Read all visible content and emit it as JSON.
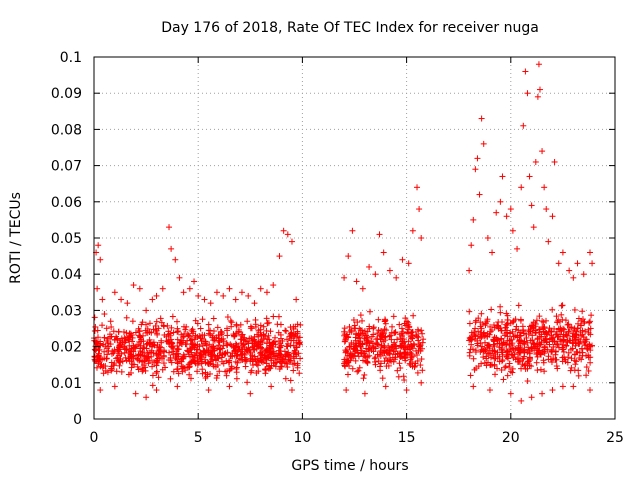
{
  "chart_data": {
    "type": "scatter",
    "title": "Day 176 of 2018, Rate Of TEC Index for receiver nuga",
    "xlabel": "GPS time / hours",
    "ylabel": "ROTI / TECUs",
    "xlim": [
      0,
      25
    ],
    "ylim": [
      0,
      0.1
    ],
    "x_ticks": [
      0,
      5,
      10,
      15,
      20,
      25
    ],
    "x_tick_labels": [
      "0",
      "5",
      "10",
      "15",
      "20",
      "25"
    ],
    "y_ticks": [
      0,
      0.01,
      0.02,
      0.03,
      0.04,
      0.05,
      0.06,
      0.07,
      0.08,
      0.09,
      0.1
    ],
    "y_tick_labels": [
      "0",
      "0.01",
      "0.02",
      "0.03",
      "0.04",
      "0.05",
      "0.06",
      "0.07",
      "0.08",
      "0.09",
      "0.1"
    ],
    "grid": true,
    "marker": "+",
    "color": "#ff0000",
    "series": [
      {
        "points": [
          [
            0.1,
            0.046
          ],
          [
            0.2,
            0.048
          ],
          [
            0.3,
            0.044
          ],
          [
            0.15,
            0.036
          ],
          [
            0.4,
            0.033
          ],
          [
            0.5,
            0.029
          ],
          [
            0.8,
            0.027
          ],
          [
            1.0,
            0.035
          ],
          [
            1.3,
            0.033
          ],
          [
            1.6,
            0.032
          ],
          [
            1.9,
            0.037
          ],
          [
            2.2,
            0.036
          ],
          [
            2.5,
            0.03
          ],
          [
            2.8,
            0.033
          ],
          [
            3.0,
            0.034
          ],
          [
            3.3,
            0.036
          ],
          [
            3.6,
            0.053
          ],
          [
            3.7,
            0.047
          ],
          [
            3.9,
            0.044
          ],
          [
            4.1,
            0.039
          ],
          [
            4.3,
            0.035
          ],
          [
            4.6,
            0.036
          ],
          [
            4.8,
            0.038
          ],
          [
            5.0,
            0.034
          ],
          [
            5.3,
            0.033
          ],
          [
            5.6,
            0.032
          ],
          [
            5.9,
            0.035
          ],
          [
            6.2,
            0.034
          ],
          [
            6.5,
            0.036
          ],
          [
            6.8,
            0.033
          ],
          [
            7.1,
            0.035
          ],
          [
            7.4,
            0.034
          ],
          [
            7.7,
            0.032
          ],
          [
            8.0,
            0.036
          ],
          [
            8.3,
            0.035
          ],
          [
            8.6,
            0.037
          ],
          [
            8.9,
            0.045
          ],
          [
            9.1,
            0.052
          ],
          [
            9.3,
            0.051
          ],
          [
            9.5,
            0.049
          ],
          [
            9.7,
            0.033
          ],
          [
            9.9,
            0.026
          ],
          [
            0.3,
            0.008
          ],
          [
            1.0,
            0.009
          ],
          [
            2.0,
            0.007
          ],
          [
            2.5,
            0.006
          ],
          [
            3.0,
            0.008
          ],
          [
            4.0,
            0.009
          ],
          [
            5.5,
            0.008
          ],
          [
            6.5,
            0.009
          ],
          [
            7.5,
            0.007
          ],
          [
            8.5,
            0.009
          ],
          [
            9.5,
            0.008
          ],
          [
            12.0,
            0.039
          ],
          [
            12.2,
            0.045
          ],
          [
            12.4,
            0.052
          ],
          [
            12.6,
            0.038
          ],
          [
            12.9,
            0.036
          ],
          [
            13.2,
            0.042
          ],
          [
            13.5,
            0.04
          ],
          [
            13.7,
            0.051
          ],
          [
            13.9,
            0.046
          ],
          [
            14.2,
            0.041
          ],
          [
            14.5,
            0.039
          ],
          [
            14.8,
            0.044
          ],
          [
            15.1,
            0.043
          ],
          [
            15.3,
            0.052
          ],
          [
            15.5,
            0.064
          ],
          [
            15.6,
            0.058
          ],
          [
            15.7,
            0.05
          ],
          [
            12.1,
            0.008
          ],
          [
            13.0,
            0.007
          ],
          [
            14.0,
            0.009
          ],
          [
            15.0,
            0.008
          ],
          [
            15.7,
            0.01
          ],
          [
            18.0,
            0.041
          ],
          [
            18.1,
            0.048
          ],
          [
            18.2,
            0.055
          ],
          [
            18.3,
            0.069
          ],
          [
            18.4,
            0.072
          ],
          [
            18.5,
            0.062
          ],
          [
            18.6,
            0.083
          ],
          [
            18.7,
            0.076
          ],
          [
            18.9,
            0.05
          ],
          [
            19.1,
            0.046
          ],
          [
            19.3,
            0.057
          ],
          [
            19.5,
            0.06
          ],
          [
            19.6,
            0.067
          ],
          [
            19.8,
            0.056
          ],
          [
            20.0,
            0.058
          ],
          [
            20.1,
            0.052
          ],
          [
            20.3,
            0.047
          ],
          [
            20.5,
            0.064
          ],
          [
            20.6,
            0.081
          ],
          [
            20.7,
            0.096
          ],
          [
            20.8,
            0.09
          ],
          [
            20.9,
            0.067
          ],
          [
            21.0,
            0.059
          ],
          [
            21.1,
            0.053
          ],
          [
            21.2,
            0.071
          ],
          [
            21.3,
            0.089
          ],
          [
            21.35,
            0.098
          ],
          [
            21.4,
            0.091
          ],
          [
            21.5,
            0.074
          ],
          [
            21.6,
            0.064
          ],
          [
            21.7,
            0.058
          ],
          [
            21.8,
            0.049
          ],
          [
            22.0,
            0.056
          ],
          [
            22.1,
            0.071
          ],
          [
            22.3,
            0.043
          ],
          [
            22.5,
            0.046
          ],
          [
            22.8,
            0.041
          ],
          [
            23.0,
            0.039
          ],
          [
            23.2,
            0.043
          ],
          [
            23.5,
            0.04
          ],
          [
            23.8,
            0.046
          ],
          [
            23.9,
            0.043
          ],
          [
            18.2,
            0.009
          ],
          [
            19.0,
            0.008
          ],
          [
            20.0,
            0.007
          ],
          [
            20.5,
            0.005
          ],
          [
            21.0,
            0.006
          ],
          [
            21.5,
            0.007
          ],
          [
            22.0,
            0.008
          ],
          [
            22.5,
            0.009
          ],
          [
            23.0,
            0.009
          ],
          [
            23.8,
            0.008
          ]
        ],
        "bands": [
          {
            "x": [
              0.0,
              9.9
            ],
            "y_center": 0.019,
            "y_spread": 0.011
          },
          {
            "x": [
              12.0,
              15.8
            ],
            "y_center": 0.02,
            "y_spread": 0.011
          },
          {
            "x": [
              18.0,
              23.9
            ],
            "y_center": 0.021,
            "y_spread": 0.012
          }
        ]
      }
    ]
  }
}
